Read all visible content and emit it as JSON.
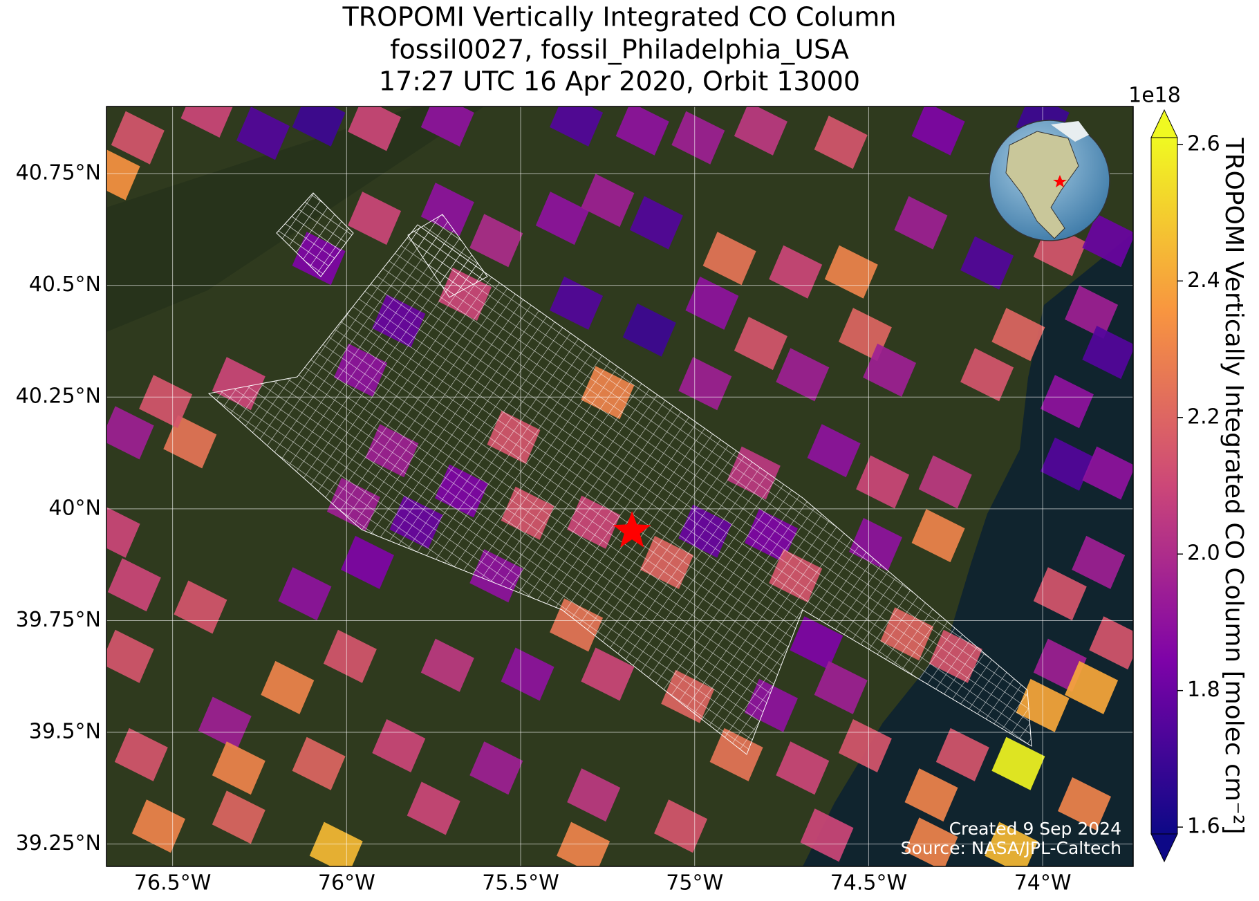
{
  "chart_data": {
    "type": "map",
    "title": [
      "TROPOMI Vertically Integrated CO Column",
      "fossil0027, fossil_Philadelphia_USA",
      "17:27 UTC 16 Apr 2020, Orbit 13000"
    ],
    "colorbar_label": "TROPOMI Vertically Integrated CO Column [molec cm⁻²]",
    "colorbar_offset": "1e18",
    "annotations": [
      "Created 9 Sep 2024",
      "Source: NASA/JPL-Caltech"
    ],
    "colormap": "plasma",
    "grid": true,
    "xlim": [
      -76.69,
      -73.74
    ],
    "ylim": [
      39.2,
      40.9
    ],
    "xticks": [
      {
        "value": -76.5,
        "label": "76.5°W"
      },
      {
        "value": -76,
        "label": "76°W"
      },
      {
        "value": -75.5,
        "label": "75.5°W"
      },
      {
        "value": -75,
        "label": "75°W"
      },
      {
        "value": -74.5,
        "label": "74.5°W"
      },
      {
        "value": -74,
        "label": "74°W"
      }
    ],
    "yticks": [
      {
        "value": 39.25,
        "label": "39.25°N"
      },
      {
        "value": 39.5,
        "label": "39.5°N"
      },
      {
        "value": 39.75,
        "label": "39.75°N"
      },
      {
        "value": 40,
        "label": "40°N"
      },
      {
        "value": 40.25,
        "label": "40.25°N"
      },
      {
        "value": 40.5,
        "label": "40.5°N"
      },
      {
        "value": 40.75,
        "label": "40.75°N"
      }
    ],
    "clim": [
      1.59,
      2.61
    ],
    "cticks": [
      1.6,
      1.8,
      {
        "value": 2,
        "label": "2.0"
      },
      2.2,
      2.4,
      2.6
    ],
    "target": [
      -75.18,
      39.95
    ],
    "target_color": "#ff0000",
    "lon": [
      -76.67,
      -76.6,
      -76.4,
      -76.24,
      -76.08,
      -75.92,
      -75.71,
      -75.34,
      -75.15,
      -74.99,
      -74.81,
      -74.58,
      -74.3,
      -74.0,
      -76.08,
      -75.92,
      -75.71,
      -75.57,
      -75.38,
      -75.25,
      -75.11,
      -74.9,
      -74.71,
      -74.55,
      -74.35,
      -74.16,
      -73.95,
      -73.81,
      -75.85,
      -75.66,
      -75.34,
      -75.13,
      -74.95,
      -74.81,
      -74.51,
      -74.07,
      -73.86,
      -73.81,
      -75.96,
      -75.25,
      -74.97,
      -74.69,
      -74.44,
      -74.16,
      -73.93,
      -76.63,
      -76.45,
      -76.52,
      -76.31,
      -75.87,
      -75.52,
      -75.67,
      -75.98,
      -75.8,
      -75.48,
      -75.29,
      -74.97,
      -74.78,
      -74.83,
      -74.6,
      -74.46,
      -74.28,
      -73.93,
      -73.81,
      -76.67,
      -76.61,
      -76.42,
      -76.12,
      -75.94,
      -75.57,
      -75.34,
      -75.08,
      -74.71,
      -74.48,
      -74.3,
      -73.95,
      -73.84,
      -74.65,
      -74.39,
      -73.79,
      -73.95,
      -76.63,
      -76.17,
      -75.99,
      -75.71,
      -75.48,
      -75.25,
      -75.02,
      -74.78,
      -74.58,
      -74.25,
      -74.0,
      -73.86,
      -74.07,
      -76.59,
      -76.35,
      -76.31,
      -76.08,
      -75.85,
      -75.57,
      -75.29,
      -74.88,
      -74.69,
      -74.51,
      -74.32,
      -74.23,
      -76.54,
      -76.31,
      -76.03,
      -75.75,
      -75.32,
      -75.04,
      -74.62,
      -74.32,
      -74.09,
      -73.88
    ],
    "lat": [
      40.75,
      40.83,
      40.89,
      40.84,
      40.87,
      40.86,
      40.87,
      40.87,
      40.85,
      40.83,
      40.85,
      40.82,
      40.85,
      40.87,
      40.56,
      40.65,
      40.67,
      40.6,
      40.65,
      40.69,
      40.64,
      40.56,
      40.53,
      40.53,
      40.64,
      40.55,
      40.58,
      40.6,
      40.42,
      40.48,
      40.46,
      40.4,
      40.46,
      40.37,
      40.39,
      40.39,
      40.44,
      40.35,
      40.31,
      40.26,
      40.28,
      40.3,
      40.31,
      40.3,
      40.24,
      40.17,
      40.15,
      40.24,
      40.28,
      40.13,
      40.16,
      40.04,
      40.01,
      39.97,
      39.99,
      39.97,
      39.95,
      39.94,
      40.08,
      40.13,
      40.06,
      40.06,
      40.1,
      40.08,
      39.95,
      39.83,
      39.78,
      39.81,
      39.88,
      39.85,
      39.74,
      39.88,
      39.85,
      39.92,
      39.94,
      39.81,
      39.88,
      39.7,
      39.72,
      39.7,
      39.65,
      39.67,
      39.6,
      39.67,
      39.65,
      39.63,
      39.63,
      39.58,
      39.56,
      39.6,
      39.67,
      39.56,
      39.6,
      39.43,
      39.45,
      39.52,
      39.42,
      39.43,
      39.47,
      39.42,
      39.36,
      39.45,
      39.42,
      39.47,
      39.36,
      39.45,
      39.29,
      39.31,
      39.24,
      39.33,
      39.24,
      39.29,
      39.27,
      39.25,
      39.24,
      39.34
    ],
    "values": [
      2.35,
      2.15,
      2.1,
      1.75,
      1.7,
      2.1,
      1.9,
      1.75,
      1.9,
      1.95,
      2.05,
      2.15,
      1.85,
      1.7,
      1.85,
      2.1,
      1.9,
      2.0,
      1.9,
      1.95,
      1.75,
      2.25,
      2.1,
      2.3,
      1.95,
      1.75,
      2.15,
      1.8,
      1.8,
      2.1,
      1.75,
      1.7,
      1.9,
      2.15,
      2.2,
      2.2,
      1.95,
      1.75,
      1.9,
      2.3,
      1.95,
      1.95,
      1.95,
      2.15,
      1.9,
      1.95,
      2.25,
      2.15,
      2.1,
      1.95,
      2.15,
      1.85,
      1.95,
      1.8,
      2.15,
      2.1,
      1.8,
      1.85,
      2.05,
      1.9,
      2.1,
      2.05,
      1.75,
      1.9,
      2.1,
      2.1,
      2.15,
      1.9,
      1.85,
      1.9,
      2.25,
      2.2,
      2.15,
      1.9,
      2.3,
      2.15,
      1.95,
      1.85,
      2.2,
      2.15,
      1.95,
      2.15,
      2.3,
      2.15,
      2.05,
      1.9,
      2.1,
      2.2,
      1.9,
      1.95,
      2.15,
      2.4,
      2.4,
      2.6,
      2.15,
      1.95,
      2.3,
      2.2,
      2.1,
      1.95,
      2.05,
      2.25,
      2.1,
      2.15,
      2.3,
      2.15,
      2.3,
      2.2,
      2.45,
      2.1,
      2.3,
      2.15,
      2.1,
      2.3,
      2.45,
      2.3
    ]
  }
}
